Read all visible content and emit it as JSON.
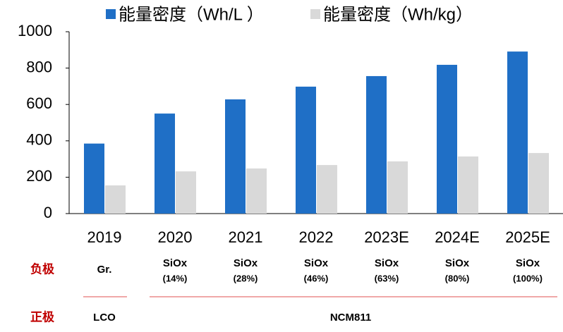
{
  "chart_data": {
    "type": "bar",
    "categories": [
      "2019",
      "2020",
      "2021",
      "2022",
      "2023E",
      "2024E",
      "2025E"
    ],
    "series": [
      {
        "name": "能量密度（Wh/L ）",
        "color": "#1f6fc6",
        "values": [
          385,
          550,
          628,
          698,
          756,
          818,
          891
        ]
      },
      {
        "name": "能量密度（Wh/kg）",
        "color": "#d9d9d9",
        "values": [
          155,
          232,
          248,
          267,
          287,
          314,
          333
        ]
      }
    ],
    "ylim": [
      0,
      1000
    ],
    "yticks": [
      0,
      200,
      400,
      600,
      800,
      1000
    ],
    "grid": false,
    "legend": "top"
  },
  "materials": {
    "anode_label": "负极",
    "anode": [
      {
        "name": "Gr."
      },
      {
        "name": "SiOx",
        "share": "(14%)"
      },
      {
        "name": "SiOx",
        "share": "(28%)"
      },
      {
        "name": "SiOx",
        "share": "(46%)"
      },
      {
        "name": "SiOx",
        "share": "(63%)"
      },
      {
        "name": "SiOx",
        "share": "(80%)"
      },
      {
        "name": "SiOx",
        "share": "(100%)"
      }
    ],
    "cathode_label": "正极",
    "cathode": [
      "LCO",
      "NCM811"
    ]
  }
}
